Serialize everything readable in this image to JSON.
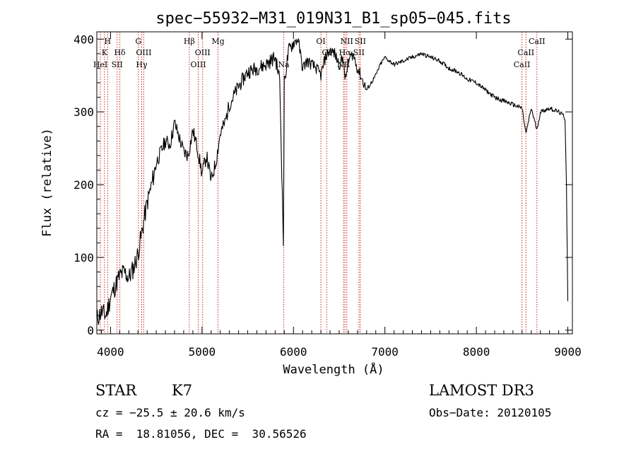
{
  "chart_data": {
    "type": "line",
    "title": "spec−55932−M31_019N31_B1_sp05−045.fits",
    "xlabel": "Wavelength (Å)",
    "ylabel": "Flux (relative)",
    "xlim": [
      3850,
      9050
    ],
    "ylim": [
      -5,
      410
    ],
    "xticks": [
      4000,
      5000,
      6000,
      7000,
      8000,
      9000
    ],
    "yticks": [
      0,
      100,
      200,
      300,
      400
    ],
    "grid": false,
    "series": [
      {
        "name": "spectrum",
        "x": [
          3850,
          3900,
          3950,
          4000,
          4050,
          4100,
          4150,
          4200,
          4250,
          4300,
          4350,
          4400,
          4450,
          4500,
          4550,
          4600,
          4650,
          4700,
          4750,
          4800,
          4850,
          4900,
          4950,
          5000,
          5050,
          5100,
          5150,
          5200,
          5250,
          5300,
          5400,
          5500,
          5600,
          5700,
          5800,
          5850,
          5890,
          5900,
          5920,
          5950,
          6000,
          6050,
          6100,
          6150,
          6200,
          6250,
          6300,
          6350,
          6400,
          6450,
          6500,
          6550,
          6563,
          6600,
          6650,
          6700,
          6750,
          6800,
          6850,
          6900,
          6950,
          7000,
          7050,
          7100,
          7200,
          7300,
          7400,
          7500,
          7600,
          7700,
          7800,
          7900,
          8000,
          8100,
          8200,
          8300,
          8400,
          8500,
          8542,
          8600,
          8662,
          8700,
          8800,
          8900,
          8950,
          8970,
          8985,
          9000
        ],
        "y": [
          15,
          25,
          20,
          45,
          60,
          75,
          80,
          72,
          85,
          105,
          140,
          175,
          200,
          230,
          245,
          260,
          255,
          285,
          265,
          245,
          240,
          275,
          250,
          215,
          240,
          205,
          230,
          270,
          285,
          310,
          335,
          355,
          360,
          365,
          375,
          345,
          120,
          340,
          360,
          385,
          395,
          400,
          360,
          370,
          365,
          360,
          350,
          375,
          385,
          380,
          365,
          375,
          340,
          370,
          380,
          360,
          345,
          330,
          340,
          350,
          365,
          375,
          370,
          365,
          370,
          375,
          380,
          375,
          370,
          360,
          355,
          345,
          340,
          330,
          320,
          315,
          310,
          305,
          270,
          305,
          275,
          300,
          305,
          300,
          295,
          290,
          200,
          40
        ]
      }
    ],
    "lines": [
      {
        "wl": 3933.7,
        "label": "K",
        "row": 1
      },
      {
        "wl": 3968.5,
        "label": "H",
        "row": 0
      },
      {
        "wl": 3889.0,
        "label": "HeI",
        "row": 2
      },
      {
        "wl": 4072.0,
        "label": "SII",
        "row": 2
      },
      {
        "wl": 4101.7,
        "label": "Hδ",
        "row": 1
      },
      {
        "wl": 4304.4,
        "label": "G",
        "row": 0
      },
      {
        "wl": 4340.5,
        "label": "Hγ",
        "row": 2
      },
      {
        "wl": 4363.0,
        "label": "OIII",
        "row": 1
      },
      {
        "wl": 4861.3,
        "label": "Hβ",
        "row": 0
      },
      {
        "wl": 4959.0,
        "label": "OIII",
        "row": 2
      },
      {
        "wl": 5007.0,
        "label": "OIII",
        "row": 1
      },
      {
        "wl": 5175.0,
        "label": "Mg",
        "row": 0
      },
      {
        "wl": 5893.0,
        "label": "Na",
        "row": 2
      },
      {
        "wl": 6300.0,
        "label": "OI",
        "row": 0
      },
      {
        "wl": 6363.0,
        "label": "OI",
        "row": 1
      },
      {
        "wl": 6548.0,
        "label": "NII",
        "row": 2
      },
      {
        "wl": 6563.0,
        "label": "Hα",
        "row": 1
      },
      {
        "wl": 6583.0,
        "label": "NII",
        "row": 0
      },
      {
        "wl": 6716.0,
        "label": "SII",
        "row": 1
      },
      {
        "wl": 6731.0,
        "label": "SII",
        "row": 0
      },
      {
        "wl": 8498.0,
        "label": "CaII",
        "row": 2
      },
      {
        "wl": 8542.0,
        "label": "CaII",
        "row": 1
      },
      {
        "wl": 8662.0,
        "label": "CaII",
        "row": 0
      }
    ]
  },
  "footer": {
    "class_label": "STAR",
    "subclass": "K7",
    "survey": "LAMOST DR3",
    "cz": "cz = −25.5 ± 20.6 km/s",
    "obs_date": "Obs−Date: 20120105",
    "coords": "RA =  18.81056, DEC =  30.56526"
  },
  "colors": {
    "spectrum": "#000000",
    "lines": "#cc2222",
    "axes": "#000000"
  }
}
